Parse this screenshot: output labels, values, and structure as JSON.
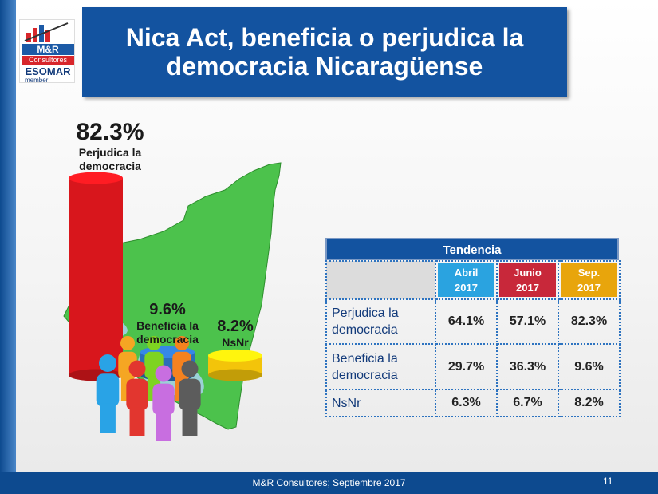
{
  "title": "Nica Act, beneficia o perjudica la democracia Nicaragüense",
  "logo": {
    "brand": "M&R",
    "sub": "Consultores",
    "esomar": "ESOMAR",
    "member": "member"
  },
  "colors": {
    "perjudica": "#d8161c",
    "beneficia": "#2b6db8",
    "nsnr": "#f3c40a",
    "map_green": "#4cc24c",
    "header_blue": "#1353a0",
    "col_abril": "#2aa3e0",
    "col_junio": "#c8283a",
    "col_sep": "#e8a50c"
  },
  "chart_data": [
    {
      "type": "bar",
      "categories": [
        "Perjudica la democracia",
        "Beneficia la democracia",
        "NsNr"
      ],
      "values": [
        82.3,
        9.6,
        8.2
      ],
      "value_labels": [
        "82.3%",
        "9.6%",
        "8.2%"
      ],
      "label_lines": [
        [
          "Perjudica la",
          "democracia"
        ],
        [
          "Beneficia la",
          "democracia"
        ],
        [
          "NsNr"
        ]
      ],
      "colors": [
        "#d8161c",
        "#2b6db8",
        "#f3c40a"
      ],
      "ylim": [
        0,
        100
      ]
    },
    {
      "type": "table",
      "title": "Tendencia",
      "columns": [
        {
          "line1": "Abril",
          "line2": "2017"
        },
        {
          "line1": "Junio",
          "line2": "2017"
        },
        {
          "line1": "Sep.",
          "line2": "2017"
        }
      ],
      "rows": [
        {
          "label_lines": [
            "Perjudica la",
            "democracia"
          ],
          "values": [
            "64.1%",
            "57.1%",
            "82.3%"
          ]
        },
        {
          "label_lines": [
            "Beneficia la",
            "democracia"
          ],
          "values": [
            "29.7%",
            "36.3%",
            "9.6%"
          ]
        },
        {
          "label_lines": [
            "NsNr"
          ],
          "values": [
            "6.3%",
            "6.7%",
            "8.2%"
          ]
        }
      ]
    }
  ],
  "footer": {
    "source": "M&R Consultores; Septiembre 2017",
    "page": "11"
  }
}
